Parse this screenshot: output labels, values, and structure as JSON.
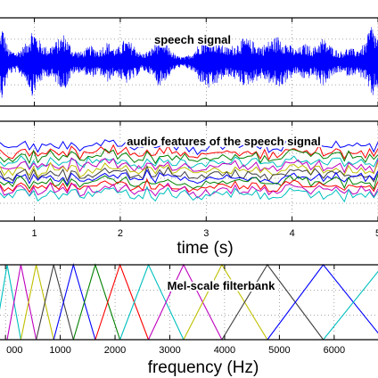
{
  "chart_data": [
    {
      "type": "line",
      "title": "speech signal",
      "xlabel": "",
      "ylabel": "",
      "x_range": [
        0.6,
        5.0
      ],
      "grid": true,
      "series": [
        {
          "color": "#0000ff",
          "amplitude_envelope": [
            {
              "t": 0.6,
              "a": 0.55
            },
            {
              "t": 0.62,
              "a": 0.95
            },
            {
              "t": 0.7,
              "a": 0.3
            },
            {
              "t": 0.8,
              "a": 0.25
            },
            {
              "t": 0.9,
              "a": 0.45
            },
            {
              "t": 0.98,
              "a": 0.85
            },
            {
              "t": 1.05,
              "a": 0.55
            },
            {
              "t": 1.15,
              "a": 0.35
            },
            {
              "t": 1.25,
              "a": 0.5
            },
            {
              "t": 1.35,
              "a": 0.7
            },
            {
              "t": 1.45,
              "a": 0.3
            },
            {
              "t": 1.55,
              "a": 0.25
            },
            {
              "t": 1.65,
              "a": 0.4
            },
            {
              "t": 1.75,
              "a": 0.3
            },
            {
              "t": 1.85,
              "a": 0.5
            },
            {
              "t": 1.95,
              "a": 0.3
            },
            {
              "t": 2.05,
              "a": 0.55
            },
            {
              "t": 2.15,
              "a": 0.45
            },
            {
              "t": 2.25,
              "a": 0.2
            },
            {
              "t": 2.35,
              "a": 0.3
            },
            {
              "t": 2.45,
              "a": 0.6
            },
            {
              "t": 2.55,
              "a": 0.4
            },
            {
              "t": 2.65,
              "a": 0.15
            },
            {
              "t": 2.75,
              "a": 0.12
            },
            {
              "t": 2.85,
              "a": 0.25
            },
            {
              "t": 2.95,
              "a": 0.55
            },
            {
              "t": 3.05,
              "a": 0.7
            },
            {
              "t": 3.15,
              "a": 0.5
            },
            {
              "t": 3.25,
              "a": 0.35
            },
            {
              "t": 3.35,
              "a": 0.45
            },
            {
              "t": 3.45,
              "a": 0.6
            },
            {
              "t": 3.55,
              "a": 0.5
            },
            {
              "t": 3.65,
              "a": 0.4
            },
            {
              "t": 3.75,
              "a": 0.55
            },
            {
              "t": 3.85,
              "a": 0.65
            },
            {
              "t": 3.95,
              "a": 0.45
            },
            {
              "t": 4.05,
              "a": 0.3
            },
            {
              "t": 4.15,
              "a": 0.45
            },
            {
              "t": 4.25,
              "a": 0.35
            },
            {
              "t": 4.35,
              "a": 0.6
            },
            {
              "t": 4.45,
              "a": 0.4
            },
            {
              "t": 4.55,
              "a": 0.25
            },
            {
              "t": 4.65,
              "a": 0.35
            },
            {
              "t": 4.75,
              "a": 0.3
            },
            {
              "t": 4.85,
              "a": 0.45
            },
            {
              "t": 4.92,
              "a": 0.95
            },
            {
              "t": 5.0,
              "a": 0.6
            }
          ]
        }
      ]
    },
    {
      "type": "line",
      "title": "audio features of the speech signal",
      "xlabel": "time (s)",
      "ylabel": "",
      "x_range": [
        0.6,
        5.0
      ],
      "x_ticks": [
        "1",
        "2",
        "3",
        "4",
        "5"
      ],
      "grid": true,
      "series": [
        {
          "color": "#0000ff",
          "level": 0.82
        },
        {
          "color": "#ff0000",
          "level": 0.72
        },
        {
          "color": "#008000",
          "level": 0.66
        },
        {
          "color": "#00bfbf",
          "level": 0.58
        },
        {
          "color": "#bf00bf",
          "level": 0.52
        },
        {
          "color": "#bfbf00",
          "level": 0.46
        },
        {
          "color": "#404040",
          "level": 0.4
        },
        {
          "color": "#0000ff",
          "level": 0.34
        },
        {
          "color": "#008000",
          "level": 0.28
        },
        {
          "color": "#ff0000",
          "level": 0.22
        },
        {
          "color": "#bf00bf",
          "level": 0.16
        },
        {
          "color": "#00bfbf",
          "level": 0.1
        }
      ]
    },
    {
      "type": "line",
      "title": "Mel-scale filterbank",
      "xlabel": "frequency (Hz)",
      "ylabel": "",
      "x_range": [
        -100,
        6800
      ],
      "y_range": [
        0,
        1
      ],
      "x_ticks": [
        "1000",
        "2000",
        "3000",
        "4000",
        "5000",
        "6000"
      ],
      "x_tick_values": [
        1000,
        2000,
        3000,
        4000,
        5000,
        6000
      ],
      "first_tick_label_clipped": "000",
      "grid": true,
      "filters": [
        {
          "lo": -200,
          "peak": 30,
          "hi": 280,
          "color": "#00bfbf"
        },
        {
          "lo": 30,
          "peak": 280,
          "hi": 560,
          "color": "#bf00bf"
        },
        {
          "lo": 280,
          "peak": 560,
          "hi": 880,
          "color": "#bfbf00"
        },
        {
          "lo": 560,
          "peak": 880,
          "hi": 1240,
          "color": "#404040"
        },
        {
          "lo": 880,
          "peak": 1240,
          "hi": 1640,
          "color": "#0000ff"
        },
        {
          "lo": 1240,
          "peak": 1640,
          "hi": 2090,
          "color": "#008000"
        },
        {
          "lo": 1640,
          "peak": 2090,
          "hi": 2610,
          "color": "#ff0000"
        },
        {
          "lo": 2090,
          "peak": 2610,
          "hi": 3250,
          "color": "#00bfbf"
        },
        {
          "lo": 2610,
          "peak": 3250,
          "hi": 3950,
          "color": "#bf00bf"
        },
        {
          "lo": 3250,
          "peak": 3950,
          "hi": 4780,
          "color": "#bfbf00"
        },
        {
          "lo": 3950,
          "peak": 4780,
          "hi": 5800,
          "color": "#404040"
        },
        {
          "lo": 4780,
          "peak": 5800,
          "hi": 6900,
          "color": "#0000ff"
        },
        {
          "lo": 5800,
          "peak": 6900,
          "hi": 8000,
          "color": "#00bfbf"
        }
      ]
    }
  ]
}
